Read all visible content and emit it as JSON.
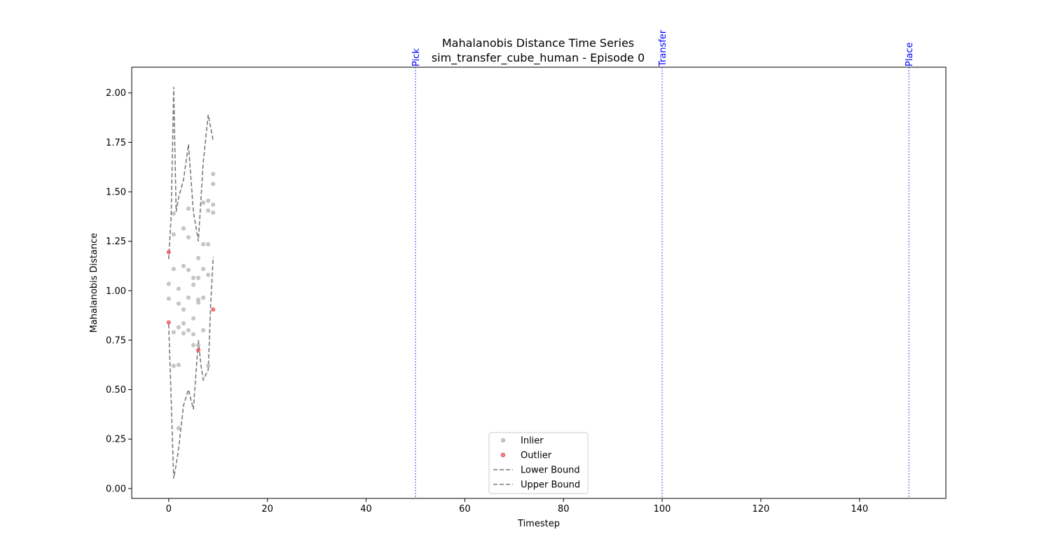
{
  "chart_data": {
    "type": "scatter",
    "title": "Mahalanobis Distance Time Series",
    "subtitle": "sim_transfer_cube_human - Episode 0",
    "xlabel": "Timestep",
    "ylabel": "Mahalanobis Distance",
    "xlim": [
      -7.5,
      157.5
    ],
    "ylim": [
      -0.05,
      2.13
    ],
    "xticks": [
      0,
      20,
      40,
      60,
      80,
      100,
      120,
      140
    ],
    "yticks": [
      0.0,
      0.25,
      0.5,
      0.75,
      1.0,
      1.25,
      1.5,
      1.75,
      2.0
    ],
    "grid": false,
    "legend_position": "lower center",
    "legend": [
      {
        "key": "inlier",
        "label": "Inlier",
        "kind": "marker",
        "color": "#bfbfbf"
      },
      {
        "key": "outlier",
        "label": "Outlier",
        "kind": "marker",
        "color": "#ff6a6a"
      },
      {
        "key": "lower",
        "label": "Lower Bound",
        "kind": "dashed-line",
        "color": "#7a7a7a"
      },
      {
        "key": "upper",
        "label": "Upper Bound",
        "kind": "dashed-line",
        "color": "#7a7a7a"
      }
    ],
    "phases": [
      {
        "label": "Pick",
        "x": 50
      },
      {
        "label": "Transfer",
        "x": 100
      },
      {
        "label": "Place",
        "x": 150
      }
    ],
    "phase_color": "#0000ff",
    "inliers": [
      [
        0,
        1.035
      ],
      [
        0,
        0.96
      ],
      [
        1,
        1.39
      ],
      [
        1,
        1.285
      ],
      [
        1,
        1.11
      ],
      [
        1,
        0.79
      ],
      [
        1,
        0.62
      ],
      [
        2,
        1.01
      ],
      [
        2,
        0.935
      ],
      [
        2,
        0.815
      ],
      [
        2,
        0.625
      ],
      [
        2,
        0.305
      ],
      [
        3,
        1.315
      ],
      [
        3,
        1.125
      ],
      [
        3,
        0.905
      ],
      [
        3,
        0.835
      ],
      [
        3,
        0.785
      ],
      [
        4,
        1.415
      ],
      [
        4,
        1.27
      ],
      [
        4,
        1.105
      ],
      [
        4,
        0.965
      ],
      [
        4,
        0.8
      ],
      [
        5,
        1.065
      ],
      [
        5,
        1.03
      ],
      [
        5,
        0.86
      ],
      [
        5,
        0.78
      ],
      [
        5,
        0.725
      ],
      [
        6,
        1.165
      ],
      [
        6,
        1.065
      ],
      [
        6,
        0.955
      ],
      [
        6,
        0.94
      ],
      [
        6,
        0.725
      ],
      [
        7,
        1.445
      ],
      [
        7,
        1.235
      ],
      [
        7,
        1.11
      ],
      [
        7,
        0.965
      ],
      [
        7,
        0.8
      ],
      [
        8,
        1.455
      ],
      [
        8,
        1.405
      ],
      [
        8,
        1.235
      ],
      [
        8,
        1.08
      ],
      [
        8,
        0.62
      ],
      [
        9,
        1.59
      ],
      [
        9,
        1.54
      ],
      [
        9,
        1.435
      ],
      [
        9,
        1.395
      ]
    ],
    "outliers": [
      [
        0,
        1.195
      ],
      [
        0,
        0.84
      ],
      [
        6,
        0.7
      ],
      [
        9,
        0.905
      ]
    ],
    "lower_bound": [
      [
        0,
        0.83
      ],
      [
        0.5,
        0.45
      ],
      [
        1,
        0.05
      ],
      [
        1.5,
        0.12
      ],
      [
        2,
        0.2
      ],
      [
        3,
        0.42
      ],
      [
        4,
        0.5
      ],
      [
        5,
        0.4
      ],
      [
        6,
        0.75
      ],
      [
        6.5,
        0.63
      ],
      [
        7,
        0.55
      ],
      [
        8,
        0.6
      ],
      [
        8.5,
        0.93
      ],
      [
        9,
        1.17
      ]
    ],
    "upper_bound": [
      [
        0,
        1.16
      ],
      [
        0.5,
        1.38
      ],
      [
        1,
        2.03
      ],
      [
        1.5,
        1.4
      ],
      [
        2,
        1.47
      ],
      [
        3,
        1.56
      ],
      [
        4,
        1.74
      ],
      [
        5,
        1.4
      ],
      [
        6,
        1.25
      ],
      [
        7,
        1.65
      ],
      [
        8,
        1.89
      ],
      [
        9,
        1.76
      ]
    ]
  }
}
